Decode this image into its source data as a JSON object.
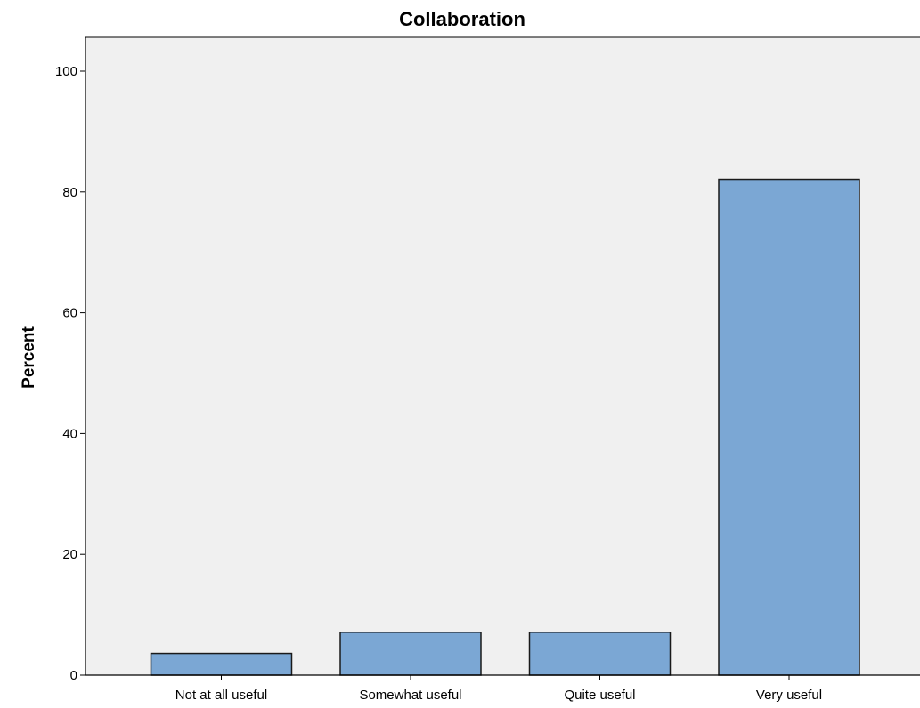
{
  "chart_data": {
    "type": "bar",
    "title": "Collaboration",
    "xlabel": "",
    "ylabel": "Percent",
    "categories": [
      "Not at all useful",
      "Somewhat useful",
      "Quite useful",
      "Very useful"
    ],
    "values": [
      3.6,
      7.1,
      7.1,
      82.1
    ],
    "ylim": [
      0,
      100
    ],
    "yticks": [
      0,
      20,
      40,
      60,
      80,
      100
    ],
    "ytick_labels": [
      "0",
      "20",
      "40",
      "60",
      "80",
      "100"
    ],
    "grid": false,
    "legend": "none"
  },
  "colors": {
    "bar_fill": "#7ba7d4",
    "bar_stroke": "#1a1a1a",
    "plot_background": "#f0f0f0",
    "axis": "#000000"
  }
}
